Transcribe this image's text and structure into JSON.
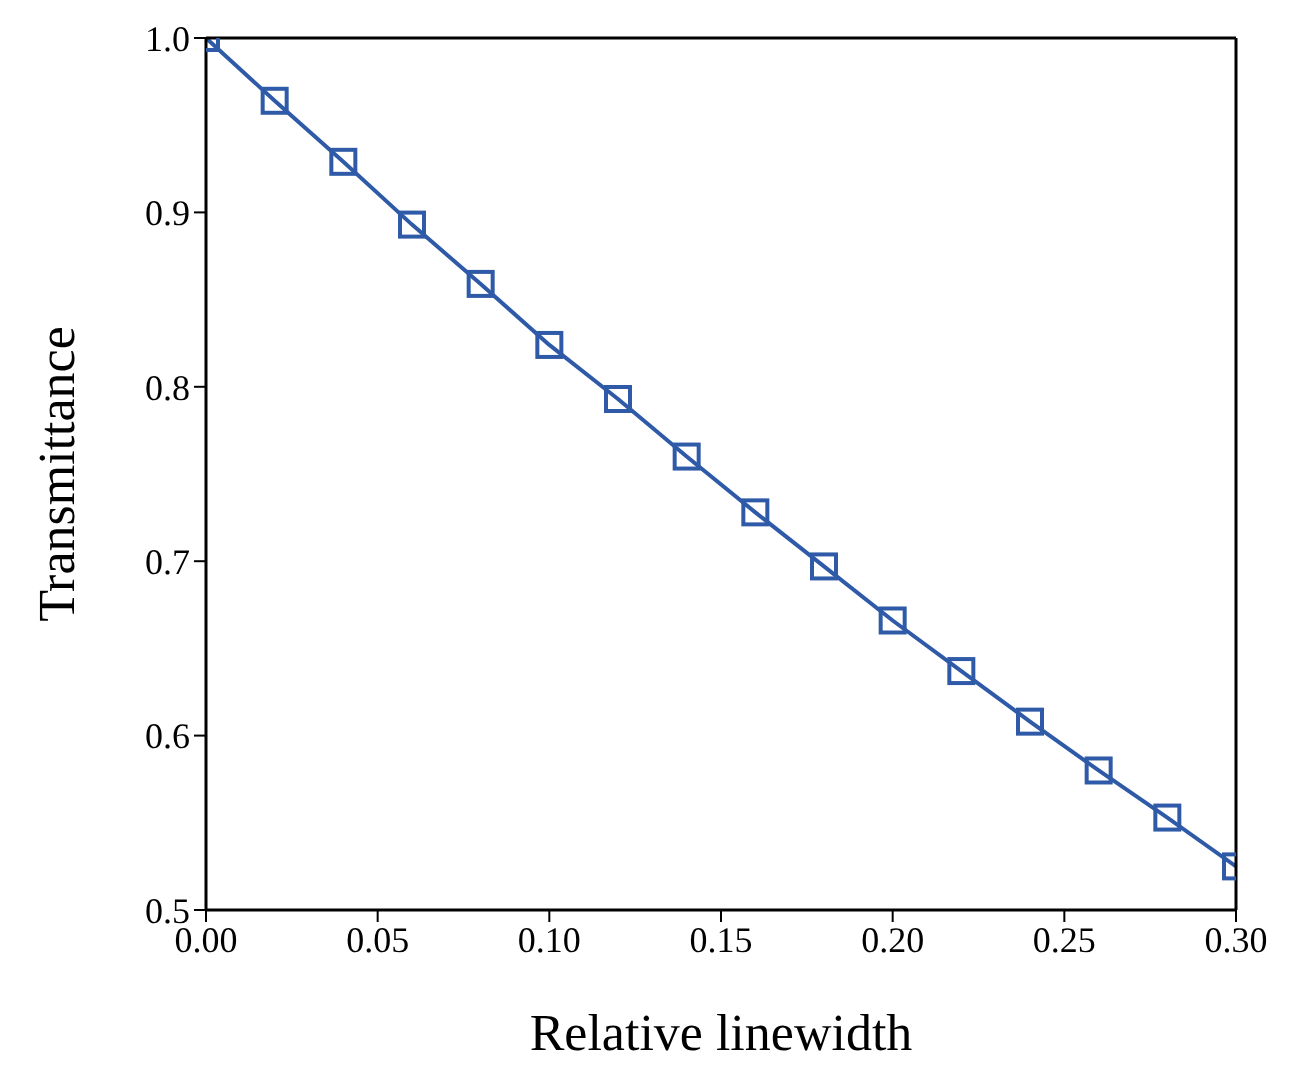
{
  "chart_data": {
    "type": "line",
    "xlabel": "Relative linewidth",
    "ylabel": "Transmittance",
    "x": [
      0,
      0.02,
      0.04,
      0.06,
      0.08,
      0.1,
      0.12,
      0.14,
      0.16,
      0.18,
      0.2,
      0.22,
      0.24,
      0.26,
      0.28,
      0.3
    ],
    "series": [
      {
        "color": "#2f5aa8",
        "values": [
          1.0,
          0.964,
          0.929,
          0.893,
          0.859,
          0.824,
          0.793,
          0.76,
          0.728,
          0.697,
          0.666,
          0.637,
          0.608,
          0.58,
          0.553,
          0.525
        ]
      }
    ],
    "xlim": [
      0,
      0.3
    ],
    "xticks": [
      {
        "value": 0,
        "label": "0.00"
      },
      {
        "value": 0.05,
        "label": "0.05"
      },
      {
        "value": 0.1,
        "label": "0.10"
      },
      {
        "value": 0.15,
        "label": "0.15"
      },
      {
        "value": 0.2,
        "label": "0.20"
      },
      {
        "value": 0.25,
        "label": "0.25"
      },
      {
        "value": 0.3,
        "label": "0.30"
      }
    ],
    "ylim": [
      0.5,
      1.0
    ],
    "yticks": [
      0.5,
      {
        "value": 0.6,
        "label": "0.6"
      },
      {
        "value": 0.7,
        "label": "0.7"
      },
      {
        "value": 0.8,
        "label": "0.8"
      },
      {
        "value": 0.9,
        "label": "0.9"
      },
      {
        "value": 1.0,
        "label": "1.0"
      }
    ],
    "marker": "square",
    "line_style": "solid",
    "grid": false
  }
}
